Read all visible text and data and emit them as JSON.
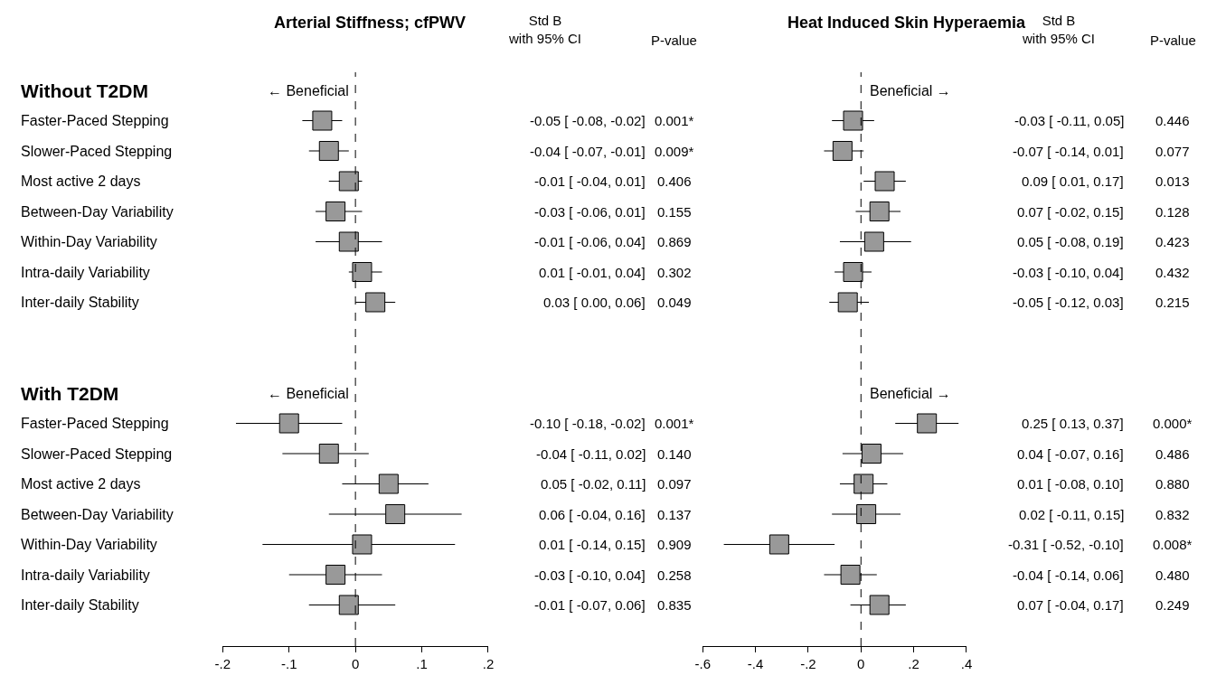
{
  "chart_data": [
    {
      "type": "scatter",
      "orientation": "horizontal",
      "title": "Arterial Stiffness; cfPWV",
      "marker": "square",
      "color": "#999999",
      "categories": [
        "Without T2DM",
        "Faster-Paced Stepping",
        "Slower-Paced Stepping",
        "Most active 2 days",
        "Between-Day Variability",
        "Within-Day Variability",
        "Intra-daily Variability",
        "Inter-daily Stability",
        null,
        null,
        "With T2DM",
        "Faster-Paced Stepping",
        "Slower-Paced Stepping",
        "Most active 2 days",
        "Between-Day Variability",
        "Within-Day Variability",
        "Intra-daily Variability",
        "Inter-daily Stability"
      ],
      "values": [
        null,
        -0.05,
        -0.04,
        -0.01,
        -0.03,
        -0.01,
        0.01,
        0.03,
        null,
        null,
        null,
        -0.1,
        -0.04,
        0.05,
        0.06,
        0.01,
        -0.03,
        -0.01
      ],
      "errors": [
        null,
        [
          -0.08,
          -0.02
        ],
        [
          -0.07,
          -0.01
        ],
        [
          -0.04,
          0.01
        ],
        [
          -0.06,
          0.01
        ],
        [
          -0.06,
          0.04
        ],
        [
          -0.01,
          0.04
        ],
        [
          0.0,
          0.06
        ],
        null,
        null,
        null,
        [
          -0.18,
          -0.02
        ],
        [
          -0.11,
          0.02
        ],
        [
          -0.02,
          0.11
        ],
        [
          -0.04,
          0.16
        ],
        [
          -0.14,
          0.15
        ],
        [
          -0.1,
          0.04
        ],
        [
          -0.07,
          0.06
        ]
      ],
      "value_labels": [
        null,
        "-0.05 [ -0.08, -0.02]",
        "-0.04 [ -0.07, -0.01]",
        "-0.01 [ -0.04, 0.01]",
        "-0.03 [ -0.06, 0.01]",
        "-0.01 [ -0.06, 0.04]",
        "0.01 [ -0.01, 0.04]",
        "0.03 [ 0.00, 0.06]",
        null,
        null,
        null,
        "-0.10 [ -0.18, -0.02]",
        "-0.04 [ -0.11, 0.02]",
        "0.05 [ -0.02, 0.11]",
        "0.06 [ -0.04, 0.16]",
        "0.01 [ -0.14, 0.15]",
        "-0.03 [ -0.10, 0.04]",
        "-0.01 [ -0.07, 0.06]"
      ],
      "annotations": [
        "Std B\nwith 95% CI",
        "P-value",
        "← Beneficial",
        "← Beneficial",
        "0.001*",
        "0.009*",
        "0.406",
        "0.155",
        "0.869",
        "0.302",
        "0.049",
        "0.001*",
        "0.140",
        "0.097",
        "0.137",
        "0.909",
        "0.258",
        "0.835"
      ],
      "xlim": [
        -0.2,
        0.2
      ],
      "xticks": [
        {
          "value": -0.2,
          "label": "-.2"
        },
        {
          "value": -0.1,
          "label": "-.1"
        },
        0,
        {
          "value": 0.1,
          "label": ".1"
        },
        {
          "value": 0.2,
          "label": ".2"
        }
      ],
      "ref_lines": [
        {
          "axis": "x",
          "value": 0,
          "line_style": "dashed",
          "color": "#000000"
        }
      ]
    },
    {
      "type": "scatter",
      "orientation": "horizontal",
      "title": "Heat Induced Skin Hyperaemia",
      "marker": "square",
      "color": "#999999",
      "tick_labels": "x",
      "categories": [
        null,
        null,
        null,
        null,
        null,
        null,
        null,
        null,
        null,
        null,
        null,
        null,
        null,
        null,
        null,
        null,
        null,
        null
      ],
      "values": [
        null,
        -0.03,
        -0.07,
        0.09,
        0.07,
        0.05,
        -0.03,
        -0.05,
        null,
        null,
        null,
        0.25,
        0.04,
        0.01,
        0.02,
        -0.31,
        -0.04,
        0.07
      ],
      "errors": [
        null,
        [
          -0.11,
          0.05
        ],
        [
          -0.14,
          0.01
        ],
        [
          0.01,
          0.17
        ],
        [
          -0.02,
          0.15
        ],
        [
          -0.08,
          0.19
        ],
        [
          -0.1,
          0.04
        ],
        [
          -0.12,
          0.03
        ],
        null,
        null,
        null,
        [
          0.13,
          0.37
        ],
        [
          -0.07,
          0.16
        ],
        [
          -0.08,
          0.1
        ],
        [
          -0.11,
          0.15
        ],
        [
          -0.52,
          -0.1
        ],
        [
          -0.14,
          0.06
        ],
        [
          -0.04,
          0.17
        ]
      ],
      "value_labels": [
        null,
        "-0.03 [ -0.11, 0.05]",
        "-0.07 [ -0.14, 0.01]",
        "0.09 [ 0.01, 0.17]",
        "0.07 [ -0.02, 0.15]",
        "0.05 [ -0.08, 0.19]",
        "-0.03 [ -0.10, 0.04]",
        "-0.05 [ -0.12, 0.03]",
        null,
        null,
        null,
        "0.25 [ 0.13, 0.37]",
        "0.04 [ -0.07, 0.16]",
        "0.01 [ -0.08, 0.10]",
        "0.02 [ -0.11, 0.15]",
        "-0.31 [ -0.52, -0.10]",
        "-0.04 [ -0.14, 0.06]",
        "0.07 [ -0.04, 0.17]"
      ],
      "annotations": [
        "Std B\nwith 95% CI",
        "P-value",
        "Beneficial →",
        "Beneficial →",
        "0.446",
        "0.077",
        "0.013",
        "0.128",
        "0.423",
        "0.432",
        "0.215",
        "0.000*",
        "0.486",
        "0.880",
        "0.832",
        "0.008*",
        "0.480",
        "0.249"
      ],
      "xlim": [
        -0.6,
        0.4
      ],
      "xticks": [
        {
          "value": -0.6,
          "label": "-.6"
        },
        {
          "value": -0.4,
          "label": "-.4"
        },
        {
          "value": -0.2,
          "label": "-.2"
        },
        0,
        {
          "value": 0.2,
          "label": ".2"
        },
        {
          "value": 0.4,
          "label": ".4"
        }
      ],
      "ref_lines": [
        {
          "axis": "x",
          "value": 0,
          "line_style": "dashed",
          "color": "#000000"
        }
      ]
    }
  ]
}
